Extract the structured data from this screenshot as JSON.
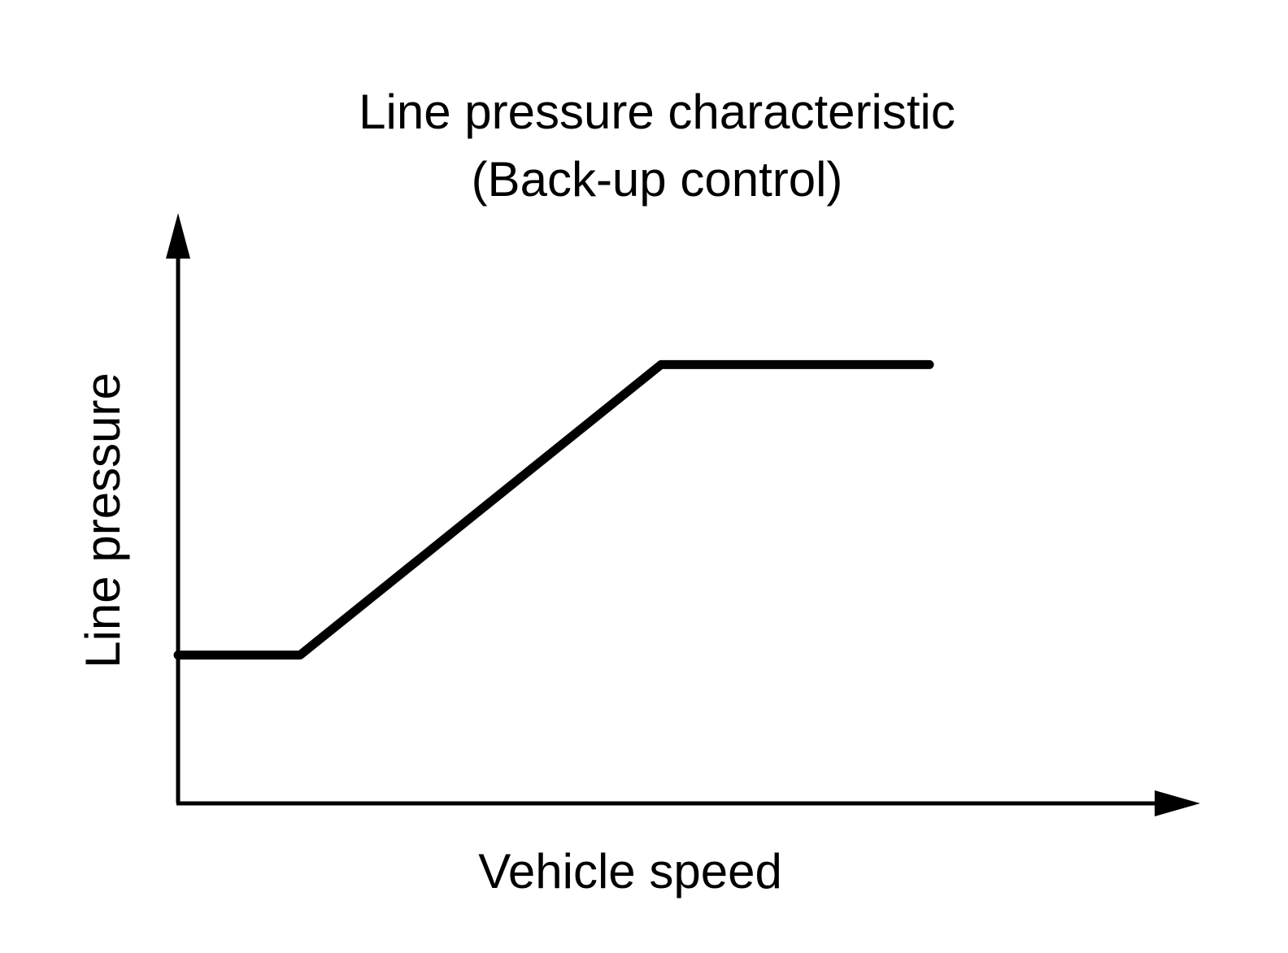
{
  "chart_data": {
    "type": "line",
    "title_line1": "Line pressure characteristic",
    "title_line2": "(Back-up control)",
    "xlabel": "Vehicle speed",
    "ylabel": "Line pressure",
    "xlim": [
      0,
      100
    ],
    "ylim": [
      0,
      100
    ],
    "grid": false,
    "ticks": false,
    "series": [
      {
        "color": "#000000",
        "x": [
          0,
          12.5,
          49.5,
          77
        ],
        "y": [
          24,
          24,
          71,
          71
        ]
      }
    ]
  }
}
